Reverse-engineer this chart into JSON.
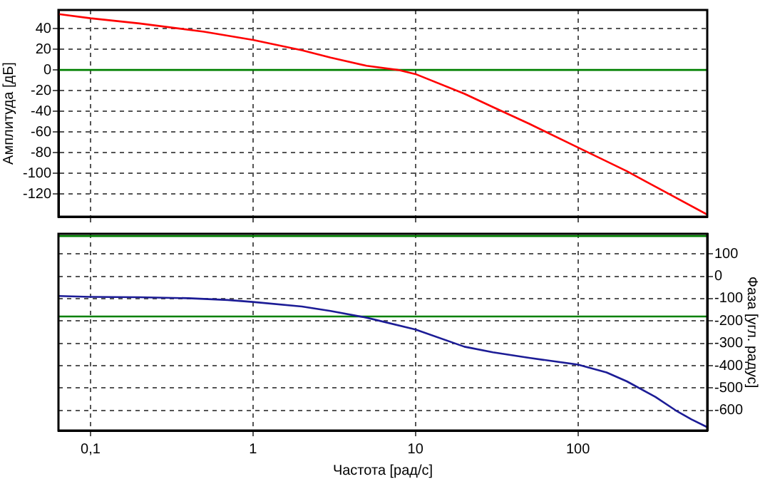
{
  "chart_data": [
    {
      "type": "line",
      "ylabel": "Амплитуда [дБ]",
      "log": "x",
      "grid": true,
      "legend": false,
      "tick_labels": "y",
      "marker": "none",
      "xlim": [
        0.0635,
        625
      ],
      "xticks": [
        0.1,
        1,
        10,
        100
      ],
      "ylim": [
        -142,
        58
      ],
      "yticks": [
        -120,
        -100,
        -80,
        -60,
        -40,
        -20,
        0,
        20,
        40
      ],
      "ref_lines": [
        {
          "axis": "y",
          "value": 0,
          "color": "#008000"
        }
      ],
      "x": [
        0.0635,
        0.1,
        0.2,
        0.5,
        1,
        2,
        3,
        5,
        7.8,
        10,
        20,
        30,
        50,
        100,
        200,
        300,
        625
      ],
      "series": [
        {
          "color": "#ff0000",
          "values": [
            54,
            50,
            45,
            37,
            29,
            19,
            12,
            4,
            0,
            -4,
            -23,
            -36,
            -52,
            -75,
            -98,
            -113,
            -140
          ]
        }
      ]
    },
    {
      "type": "line",
      "xlabel": "Частота [рад/с]",
      "y2label": "Фаза [угл. радус]",
      "log": "x",
      "grid": true,
      "legend": false,
      "marker": "none",
      "xlim": [
        0.0635,
        625
      ],
      "xticks": [
        {
          "value": 0.1,
          "label": "0,1"
        },
        1,
        10,
        100
      ],
      "y2lim": [
        -690,
        190
      ],
      "y2ticks": [
        -600,
        -500,
        -400,
        -300,
        -200,
        -100,
        0,
        100
      ],
      "ref_lines": [
        {
          "axis": "y2",
          "value": 180,
          "color": "#008000"
        },
        {
          "axis": "y2",
          "value": -180,
          "color": "#008000"
        }
      ],
      "x": [
        0.0635,
        0.1,
        0.2,
        0.4,
        0.7,
        1,
        2,
        3,
        5,
        10,
        20,
        30,
        50,
        100,
        150,
        200,
        300,
        400,
        500,
        625
      ],
      "series": [
        {
          "color": "#1c1c96",
          "axis": "y2",
          "values": [
            -88,
            -92,
            -94,
            -98,
            -106,
            -115,
            -135,
            -155,
            -185,
            -238,
            -315,
            -340,
            -365,
            -395,
            -430,
            -470,
            -540,
            -600,
            -640,
            -675
          ]
        }
      ]
    }
  ]
}
